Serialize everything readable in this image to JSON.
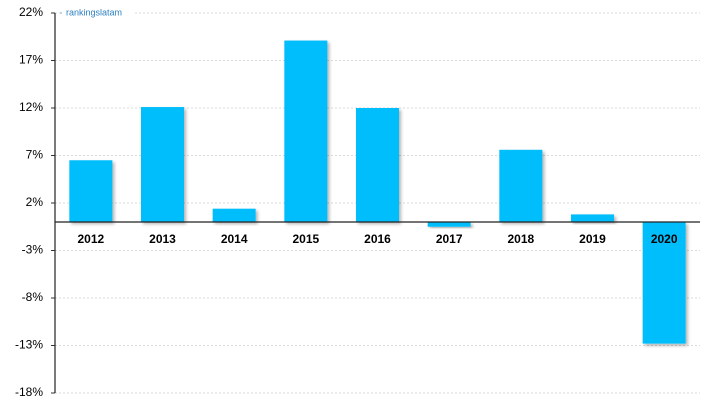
{
  "chart_data": {
    "type": "bar",
    "watermark": "rankingslatam",
    "categories": [
      "2012",
      "2013",
      "2014",
      "2015",
      "2016",
      "2017",
      "2018",
      "2019",
      "2020"
    ],
    "values": [
      6.5,
      12.1,
      1.4,
      19.1,
      12.0,
      -0.5,
      7.6,
      0.8,
      -12.8
    ],
    "color": "#06bdfc",
    "ylim": [
      -18,
      22
    ],
    "yticks": [
      {
        "value": -18,
        "label": "-18%"
      },
      {
        "value": -13,
        "label": "-13%"
      },
      {
        "value": -8,
        "label": "-8%"
      },
      {
        "value": -3,
        "label": "-3%"
      },
      {
        "value": 2,
        "label": "2%"
      },
      {
        "value": 7,
        "label": "7%"
      },
      {
        "value": 12,
        "label": "12%"
      },
      {
        "value": 17,
        "label": "17%"
      },
      {
        "value": 22,
        "label": "22%"
      }
    ],
    "grid": true
  }
}
